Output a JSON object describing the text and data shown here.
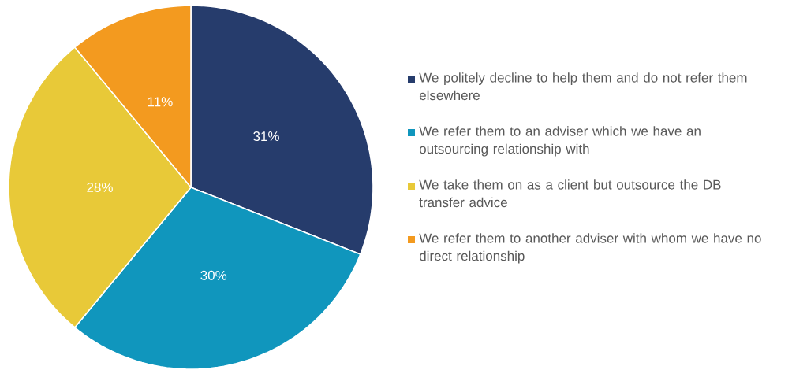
{
  "chart_data": {
    "type": "pie",
    "categories": [
      "We politely decline to help them and do not refer them elsewhere",
      "We refer them to an adviser which we have an outsourcing relationship with",
      "We take them on as a client but outsource the DB transfer advice",
      "We refer them to another adviser with whom we have no direct relationship"
    ],
    "values": [
      31,
      30,
      28,
      11
    ],
    "colors": [
      "#263c6c",
      "#1096bd",
      "#e8c938",
      "#f39a1f"
    ],
    "value_labels": [
      "31%",
      "30%",
      "28%",
      "11%"
    ],
    "legend": "right"
  }
}
